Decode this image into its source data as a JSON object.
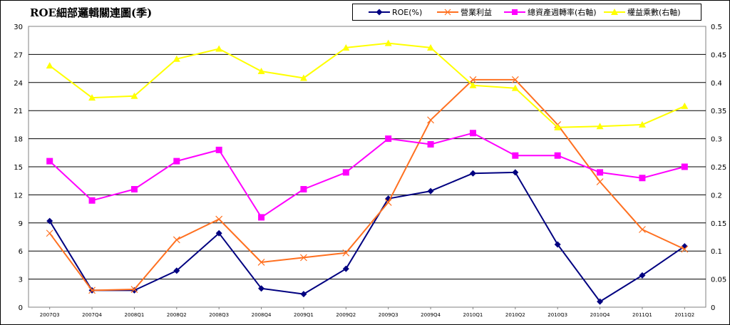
{
  "chart_data": {
    "type": "line",
    "title": "ROE細部邏輯關連圖(季)",
    "categories": [
      "2007Q3",
      "2007Q4",
      "2008Q1",
      "2008Q2",
      "2008Q3",
      "2008Q4",
      "2009Q1",
      "2009Q2",
      "2009Q3",
      "2009Q4",
      "2010Q1",
      "2010Q2",
      "2010Q3",
      "2010Q4",
      "2011Q1",
      "2011Q2"
    ],
    "y_left": {
      "lim": [
        0,
        30
      ],
      "ticks": [
        "0",
        "3",
        "6",
        "9",
        "12",
        "15",
        "18",
        "21",
        "24",
        "27",
        "30"
      ]
    },
    "y_right": {
      "lim": [
        0,
        0.5
      ],
      "ticks": [
        "0",
        "0.05",
        "0.1",
        "0.15",
        "0.2",
        "0.25",
        "0.3",
        "0.35",
        "0.4",
        "0.45",
        "0.5"
      ]
    },
    "grid": "horizontal",
    "legend_position": "top-right",
    "series": [
      {
        "name": "ROE(%)",
        "axis": "left",
        "color": "#000080",
        "marker": "diamond",
        "values": [
          9.2,
          1.8,
          1.8,
          3.9,
          7.9,
          2.0,
          1.4,
          4.1,
          11.6,
          12.4,
          14.3,
          14.4,
          6.7,
          0.6,
          3.4,
          6.5
        ]
      },
      {
        "name": "營業利益",
        "axis": "left",
        "color": "#FF7020",
        "marker": "x",
        "values": [
          7.9,
          1.8,
          1.9,
          7.2,
          9.4,
          4.8,
          5.3,
          5.8,
          11.2,
          20.0,
          24.3,
          24.3,
          19.5,
          13.4,
          8.3,
          6.2
        ]
      },
      {
        "name": "總資產週轉率(右軸)",
        "axis": "right",
        "color": "#FF00FF",
        "marker": "square",
        "values": [
          0.26,
          0.19,
          0.21,
          0.26,
          0.28,
          0.16,
          0.21,
          0.24,
          0.3,
          0.29,
          0.31,
          0.27,
          0.27,
          0.24,
          0.23,
          0.25
        ]
      },
      {
        "name": "權益乘數(右軸)",
        "axis": "right",
        "color": "#FFFF00",
        "marker": "triangle",
        "values": [
          0.43,
          0.373,
          0.376,
          0.442,
          0.46,
          0.42,
          0.408,
          0.462,
          0.47,
          0.462,
          0.395,
          0.39,
          0.32,
          0.322,
          0.325,
          0.358
        ]
      }
    ]
  }
}
